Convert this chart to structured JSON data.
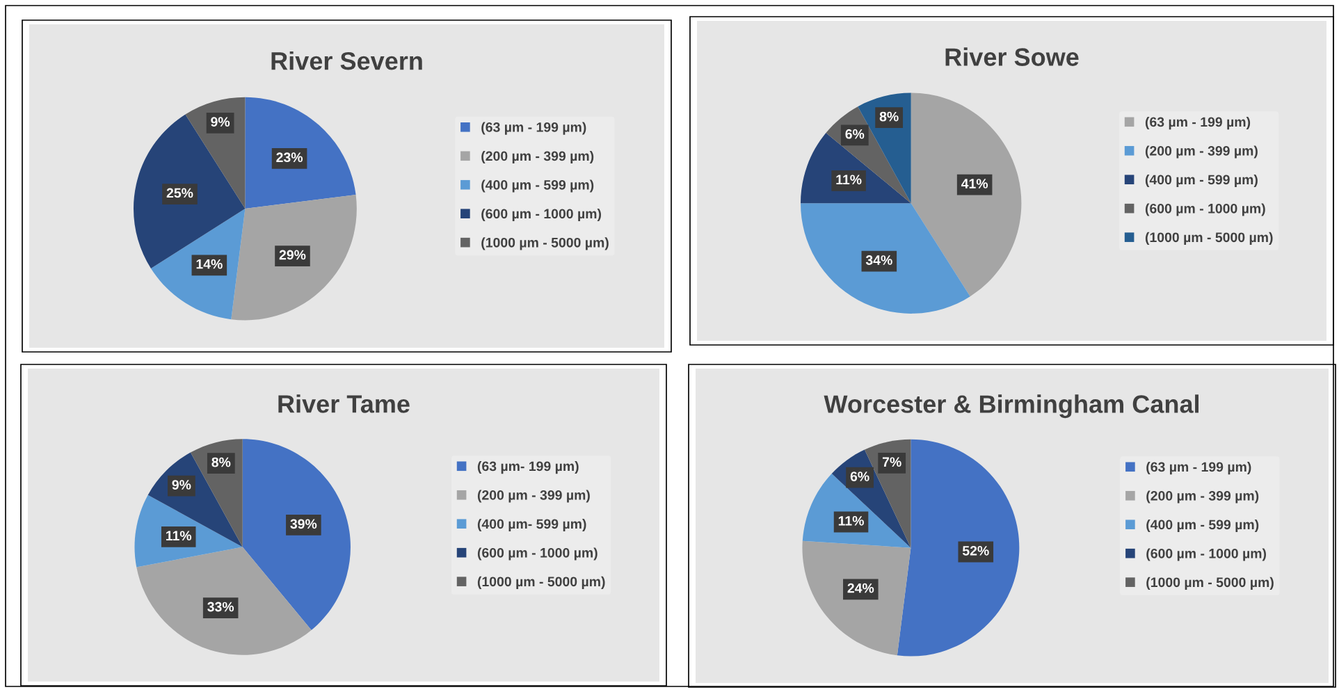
{
  "chart_data": [
    {
      "type": "pie",
      "title": "River Severn",
      "legend": "right",
      "categories": [
        "(63 µm - 199 µm)",
        "(200 µm - 399 µm)",
        "(400 µm - 599 µm)",
        "(600 µm - 1000 µm)",
        "(1000 µm - 5000 µm)"
      ],
      "values": [
        23,
        29,
        14,
        25,
        9
      ],
      "value_labels": [
        "23%",
        "29%",
        "14%",
        "25%",
        "9%"
      ],
      "colors": [
        "#4472c4",
        "#a5a5a5",
        "#5b9bd5",
        "#264478",
        "#636363"
      ]
    },
    {
      "type": "pie",
      "title": "River Sowe",
      "legend": "right",
      "categories": [
        "(63 µm - 199 µm)",
        "(200 µm - 399 µm)",
        "(400 µm - 599 µm)",
        "(600 µm - 1000 µm)",
        "(1000 µm - 5000 µm)"
      ],
      "values": [
        41,
        34,
        11,
        6,
        8
      ],
      "value_labels": [
        "41%",
        "34%",
        "11%",
        "6%",
        "8%"
      ],
      "colors": [
        "#a5a5a5",
        "#5b9bd5",
        "#264478",
        "#636363",
        "#255e91"
      ]
    },
    {
      "type": "pie",
      "title": "River Tame",
      "legend": "right",
      "categories": [
        "(63 µm- 199 µm)",
        "(200 µm - 399 µm)",
        "(400 µm- 599 µm)",
        "(600 µm - 1000 µm)",
        "(1000 µm - 5000 µm)"
      ],
      "values": [
        39,
        33,
        11,
        9,
        8
      ],
      "value_labels": [
        "39%",
        "33%",
        "11%",
        "9%",
        "8%"
      ],
      "colors": [
        "#4472c4",
        "#a5a5a5",
        "#5b9bd5",
        "#264478",
        "#636363"
      ]
    },
    {
      "type": "pie",
      "title": "Worcester & Birmingham Canal",
      "legend": "right",
      "categories": [
        "(63 µm - 199 µm)",
        "(200 µm - 399 µm)",
        "(400 µm - 599 µm)",
        "(600 µm - 1000 µm)",
        "(1000 µm - 5000 µm)"
      ],
      "values": [
        52,
        24,
        11,
        6,
        7
      ],
      "value_labels": [
        "52%",
        "24%",
        "11%",
        "6%",
        "7%"
      ],
      "colors": [
        "#4472c4",
        "#a5a5a5",
        "#5b9bd5",
        "#264478",
        "#636363"
      ]
    }
  ]
}
